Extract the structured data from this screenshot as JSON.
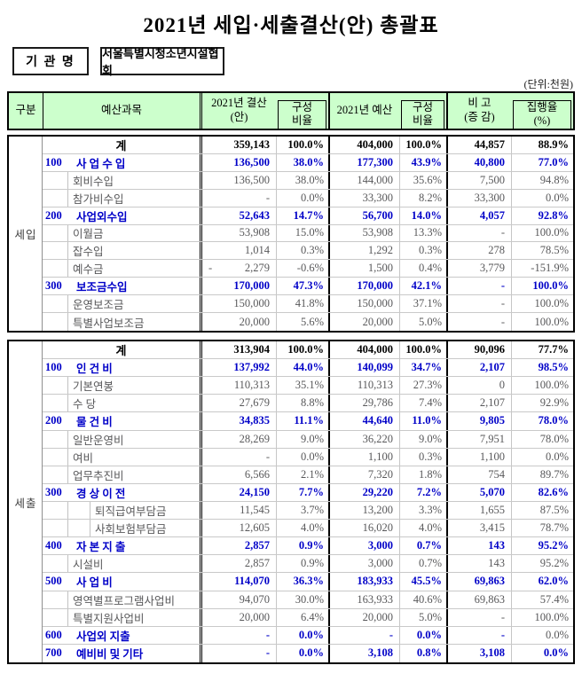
{
  "title": "2021년 세입·세출결산(안) 총괄표",
  "org_label": "기 관 명",
  "org_name": "서울특별시청소년시설협회",
  "unit_note": "(단위:천원)",
  "colors": {
    "header_bg": "#ccffcc",
    "accent_blue": "#0000c8",
    "text_grey": "#58585a",
    "border_black": "#000000"
  },
  "table": {
    "columns": [
      {
        "id": "gubun",
        "label": "구분"
      },
      {
        "id": "item",
        "label": "예산과목"
      },
      {
        "id": "n1",
        "label": "2021년 결산\n(안)"
      },
      {
        "id": "p1",
        "label": "구성\n비율",
        "boxed": true
      },
      {
        "id": "n2",
        "label": "2021년 예산"
      },
      {
        "id": "p2",
        "label": "구성\n비율",
        "boxed": true
      },
      {
        "id": "n3",
        "label": "비 고\n(증 감)"
      },
      {
        "id": "p3",
        "label": "집행율\n(%)",
        "boxed": true
      }
    ],
    "sections": [
      {
        "group": "세입",
        "rows": [
          {
            "style": "total",
            "level": 0,
            "code": null,
            "name": "계",
            "cells": [
              "359,143",
              "100.0%",
              "404,000",
              "100.0%",
              "44,857",
              "88.9%"
            ]
          },
          {
            "style": "cat",
            "level": 1,
            "code": "100",
            "name": "사 업 수 입",
            "cells": [
              "136,500",
              "38.0%",
              "177,300",
              "43.9%",
              "40,800",
              "77.0%"
            ]
          },
          {
            "style": "item",
            "level": 2,
            "code": null,
            "name": "회비수입",
            "cells": [
              "136,500",
              "38.0%",
              "144,000",
              "35.6%",
              "7,500",
              "94.8%"
            ]
          },
          {
            "style": "item",
            "level": 2,
            "code": null,
            "name": "참가비수입",
            "cells": [
              "-",
              "0.0%",
              "33,300",
              "8.2%",
              "33,300",
              "0.0%"
            ]
          },
          {
            "style": "cat",
            "level": 1,
            "code": "200",
            "name": "사업외수입",
            "cells": [
              "52,643",
              "14.7%",
              "56,700",
              "14.0%",
              "4,057",
              "92.8%"
            ]
          },
          {
            "style": "item",
            "level": 2,
            "code": null,
            "name": "이월금",
            "cells": [
              "53,908",
              "15.0%",
              "53,908",
              "13.3%",
              "-",
              "100.0%"
            ]
          },
          {
            "style": "item",
            "level": 2,
            "code": null,
            "name": "잡수입",
            "cells": [
              "1,014",
              "0.3%",
              "1,292",
              "0.3%",
              "278",
              "78.5%"
            ]
          },
          {
            "style": "item",
            "level": 2,
            "code": null,
            "name": "예수금",
            "cells": [
              {
                "neg": "2,279"
              },
              "-0.6%",
              "1,500",
              "0.4%",
              "3,779",
              "-151.9%"
            ]
          },
          {
            "style": "cat",
            "level": 1,
            "code": "300",
            "name": "보조금수입",
            "cells": [
              "170,000",
              "47.3%",
              "170,000",
              "42.1%",
              "-",
              "100.0%"
            ]
          },
          {
            "style": "item",
            "level": 2,
            "code": null,
            "name": "운영보조금",
            "cells": [
              "150,000",
              "41.8%",
              "150,000",
              "37.1%",
              "-",
              "100.0%"
            ]
          },
          {
            "style": "item",
            "level": 2,
            "code": null,
            "name": "특별사업보조금",
            "cells": [
              "20,000",
              "5.6%",
              "20,000",
              "5.0%",
              "-",
              "100.0%"
            ]
          }
        ]
      },
      {
        "group": "세출",
        "rows": [
          {
            "style": "total",
            "level": 0,
            "code": null,
            "name": "계",
            "cells": [
              "313,904",
              "100.0%",
              "404,000",
              "100.0%",
              "90,096",
              "77.7%"
            ]
          },
          {
            "style": "cat",
            "level": 1,
            "code": "100",
            "name": "인 건 비",
            "cells": [
              "137,992",
              "44.0%",
              "140,099",
              "34.7%",
              "2,107",
              "98.5%"
            ]
          },
          {
            "style": "item",
            "level": 2,
            "code": null,
            "name": "기본연봉",
            "cells": [
              "110,313",
              "35.1%",
              "110,313",
              "27.3%",
              "0",
              "100.0%"
            ]
          },
          {
            "style": "item",
            "level": 2,
            "code": null,
            "name": "수 당",
            "cells": [
              "27,679",
              "8.8%",
              "29,786",
              "7.4%",
              "2,107",
              "92.9%"
            ]
          },
          {
            "style": "cat",
            "level": 1,
            "code": "200",
            "name": "물 건 비",
            "cells": [
              "34,835",
              "11.1%",
              "44,640",
              "11.0%",
              "9,805",
              "78.0%"
            ]
          },
          {
            "style": "item",
            "level": 2,
            "code": null,
            "name": "일반운영비",
            "cells": [
              "28,269",
              "9.0%",
              "36,220",
              "9.0%",
              "7,951",
              "78.0%"
            ]
          },
          {
            "style": "item",
            "level": 2,
            "code": null,
            "name": "여비",
            "cells": [
              "-",
              "0.0%",
              "1,100",
              "0.3%",
              "1,100",
              "0.0%"
            ]
          },
          {
            "style": "item",
            "level": 2,
            "code": null,
            "name": "업무추진비",
            "cells": [
              "6,566",
              "2.1%",
              "7,320",
              "1.8%",
              "754",
              "89.7%"
            ]
          },
          {
            "style": "cat",
            "level": 1,
            "code": "300",
            "name": "경 상 이 전",
            "cells": [
              "24,150",
              "7.7%",
              "29,220",
              "7.2%",
              "5,070",
              "82.6%"
            ]
          },
          {
            "style": "item",
            "level": 3,
            "code": null,
            "name": "퇴직급여부담금",
            "cells": [
              "11,545",
              "3.7%",
              "13,200",
              "3.3%",
              "1,655",
              "87.5%"
            ]
          },
          {
            "style": "item",
            "level": 3,
            "code": null,
            "name": "사회보험부담금",
            "cells": [
              "12,605",
              "4.0%",
              "16,020",
              "4.0%",
              "3,415",
              "78.7%"
            ]
          },
          {
            "style": "cat",
            "level": 1,
            "code": "400",
            "name": "자 본 지 출",
            "cells": [
              "2,857",
              "0.9%",
              "3,000",
              "0.7%",
              "143",
              "95.2%"
            ]
          },
          {
            "style": "item",
            "level": 2,
            "code": null,
            "name": "시설비",
            "cells": [
              "2,857",
              "0.9%",
              "3,000",
              "0.7%",
              "143",
              "95.2%"
            ]
          },
          {
            "style": "cat",
            "level": 1,
            "code": "500",
            "name": "사 업 비",
            "cells": [
              "114,070",
              "36.3%",
              "183,933",
              "45.5%",
              "69,863",
              "62.0%"
            ]
          },
          {
            "style": "item",
            "level": 2,
            "code": null,
            "name": "영역별프로그램사업비",
            "cells": [
              "94,070",
              "30.0%",
              "163,933",
              "40.6%",
              "69,863",
              "57.4%"
            ]
          },
          {
            "style": "item",
            "level": 2,
            "code": null,
            "name": "특별지원사업비",
            "cells": [
              "20,000",
              "6.4%",
              "20,000",
              "5.0%",
              "-",
              "100.0%"
            ]
          },
          {
            "style": "cat",
            "level": 1,
            "code": "600",
            "name": "사업외 지출",
            "cells": [
              "-",
              "0.0%",
              "-",
              "0.0%",
              "-",
              {
                "v": "0.0%",
                "plain": true
              }
            ]
          },
          {
            "style": "cat",
            "level": 1,
            "code": "700",
            "name": "예비비 및 기타",
            "cells": [
              "-",
              "0.0%",
              "3,108",
              "0.8%",
              "3,108",
              "0.0%"
            ]
          }
        ]
      }
    ]
  }
}
